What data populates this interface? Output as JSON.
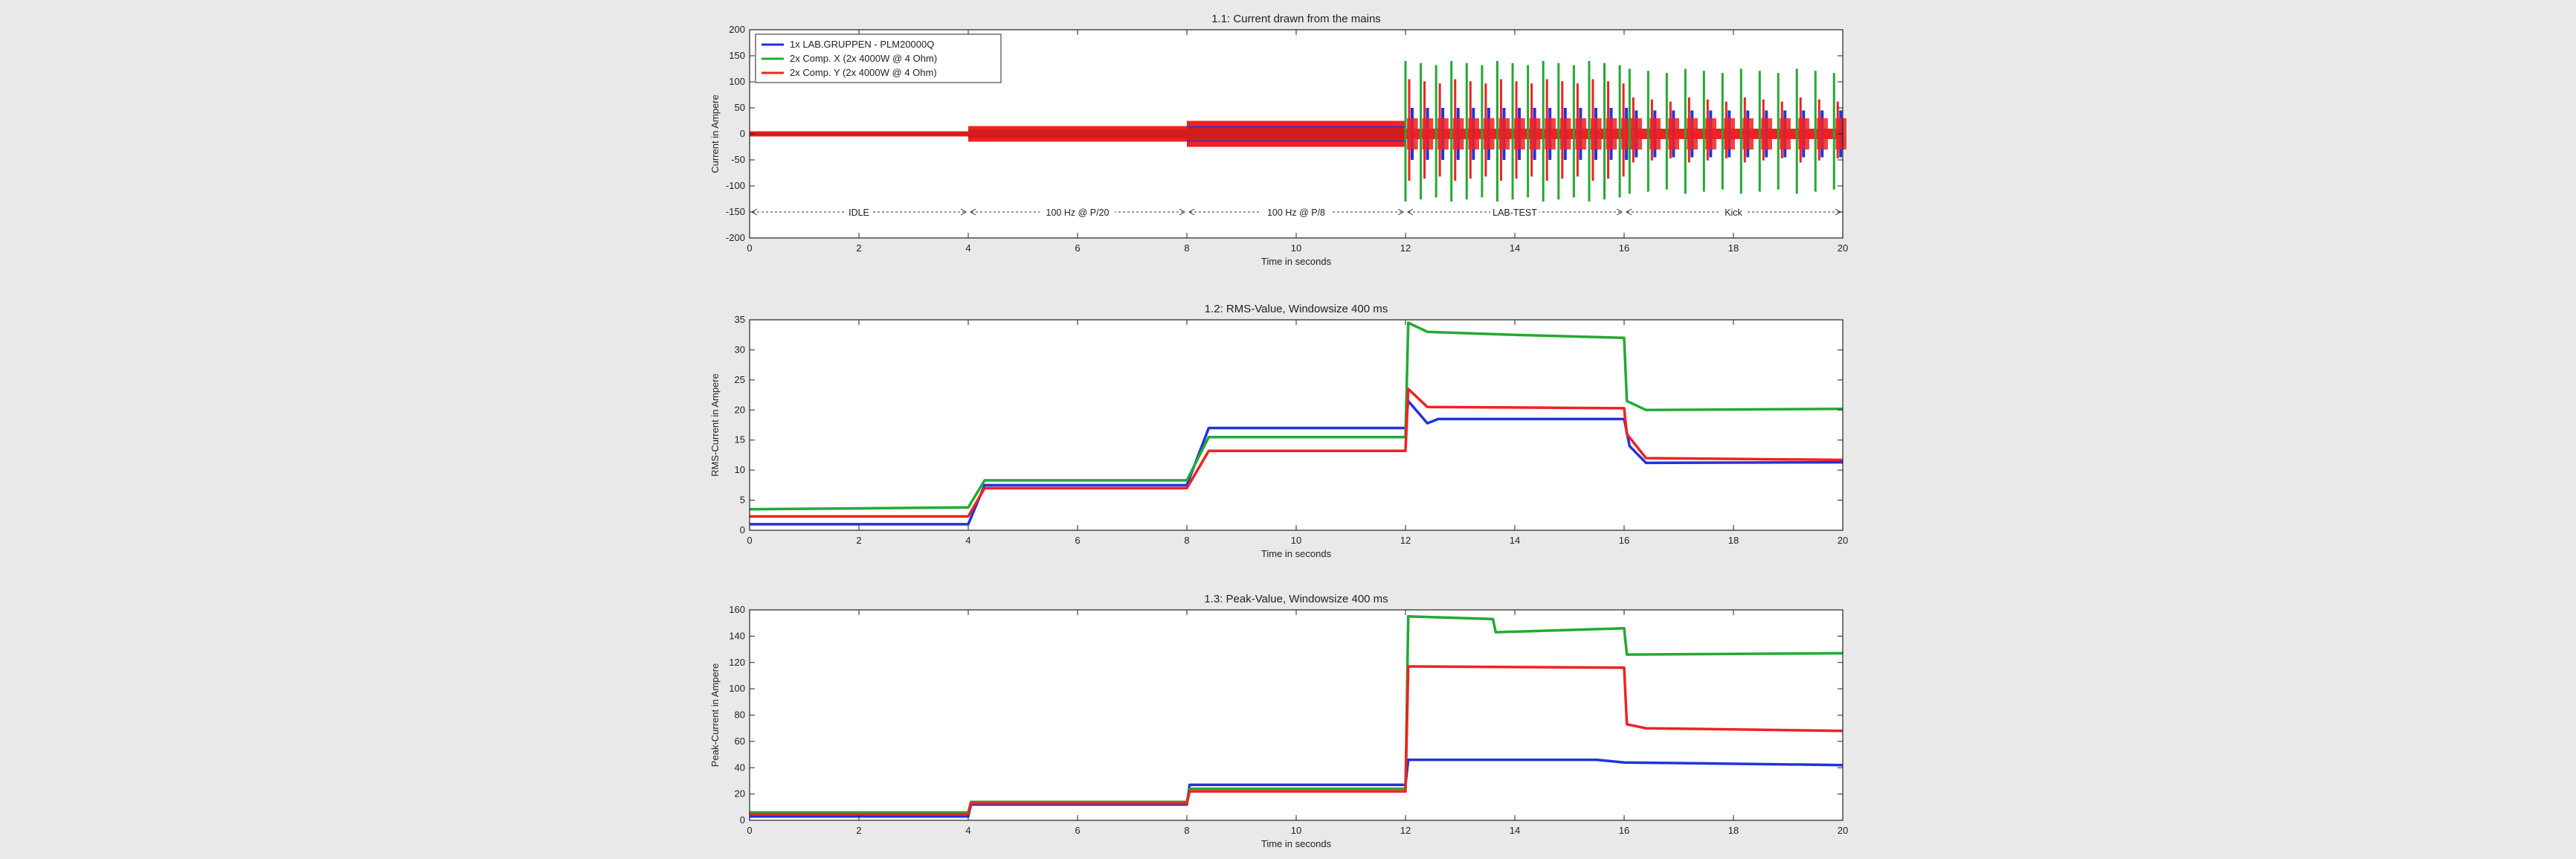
{
  "chart_data": [
    {
      "type": "line",
      "title": "1.1: Current drawn from the mains",
      "xlabel": "Time in seconds",
      "ylabel": "Current in Ampere",
      "xlim": [
        0,
        20
      ],
      "ylim": [
        -200,
        200
      ],
      "xticks": [
        0,
        2,
        4,
        6,
        8,
        10,
        12,
        14,
        16,
        18,
        20
      ],
      "yticks": [
        -200,
        -150,
        -100,
        -50,
        0,
        50,
        100,
        150,
        200
      ],
      "grid": false,
      "legend": "top-left",
      "series": [
        {
          "name": "1x LAB.GRUPPEN - PLM20000Q",
          "color": "#2233dd"
        },
        {
          "name": "2x Comp. X (2x 4000W @ 4 Ohm)",
          "color": "#22aa33"
        },
        {
          "name": "2x Comp. Y (2x 4000W @ 4 Ohm)",
          "color": "#ee2222"
        }
      ],
      "envelope": [
        {
          "t0": 0,
          "t1": 4,
          "amplitude": 5
        },
        {
          "t0": 4,
          "t1": 8,
          "amplitude": 15
        },
        {
          "t0": 8,
          "t1": 12,
          "amplitude": 25
        }
      ],
      "bursts": [
        {
          "t0": 12,
          "t1": 16,
          "times": [
            12,
            12.28,
            12.56,
            12.84,
            13.12,
            13.4,
            13.68,
            13.96,
            14.24,
            14.52,
            14.8,
            15.08,
            15.36,
            15.64,
            15.92
          ],
          "peak_green": 140,
          "peak_red": 105,
          "peak_blue": 50
        },
        {
          "t0": 16,
          "t1": 20,
          "times": [
            16.1,
            16.44,
            16.78,
            17.12,
            17.46,
            17.8,
            18.14,
            18.48,
            18.82,
            19.16,
            19.5,
            19.84
          ],
          "peak_green": 125,
          "peak_red": 70,
          "peak_blue": 45
        }
      ],
      "segments": [
        {
          "label": "IDLE",
          "x0": 0,
          "x1": 4
        },
        {
          "label": "100 Hz @ P/20",
          "x0": 4,
          "x1": 8
        },
        {
          "label": "100 Hz @ P/8",
          "x0": 8,
          "x1": 12
        },
        {
          "label": "LAB-TEST",
          "x0": 12,
          "x1": 16
        },
        {
          "label": "Kick",
          "x0": 16,
          "x1": 20
        }
      ]
    },
    {
      "type": "line",
      "title": "1.2: RMS-Value, Windowsize 400 ms",
      "xlabel": "Time in seconds",
      "ylabel": "RMS-Current in Ampere",
      "xlim": [
        0,
        20
      ],
      "ylim": [
        0,
        35
      ],
      "xticks": [
        0,
        2,
        4,
        6,
        8,
        10,
        12,
        14,
        16,
        18,
        20
      ],
      "yticks": [
        0,
        5,
        10,
        15,
        20,
        25,
        30,
        35
      ],
      "grid": false,
      "series": [
        {
          "name": "1x LAB.GRUPPEN - PLM20000Q",
          "color": "#2233dd",
          "points": [
            [
              0,
              1
            ],
            [
              4,
              1
            ],
            [
              4.3,
              7.5
            ],
            [
              8,
              7.5
            ],
            [
              8.4,
              17
            ],
            [
              12,
              17
            ],
            [
              12.05,
              21.5
            ],
            [
              12.4,
              17.8
            ],
            [
              12.6,
              18.5
            ],
            [
              16,
              18.5
            ],
            [
              16.1,
              14
            ],
            [
              16.4,
              11.2
            ],
            [
              20,
              11.3
            ]
          ]
        },
        {
          "name": "2x Comp. X (2x 4000W @ 4 Ohm)",
          "color": "#22aa33",
          "points": [
            [
              0,
              3.5
            ],
            [
              4,
              3.8
            ],
            [
              4.3,
              8.3
            ],
            [
              8,
              8.3
            ],
            [
              8.4,
              15.5
            ],
            [
              12,
              15.5
            ],
            [
              12.05,
              34.5
            ],
            [
              12.4,
              33
            ],
            [
              14,
              32.5
            ],
            [
              16,
              32
            ],
            [
              16.05,
              21.5
            ],
            [
              16.4,
              20
            ],
            [
              20,
              20.2
            ]
          ]
        },
        {
          "name": "2x Comp. Y (2x 4000W @ 4 Ohm)",
          "color": "#ee2222",
          "points": [
            [
              0,
              2.3
            ],
            [
              4,
              2.3
            ],
            [
              4.3,
              7
            ],
            [
              8,
              7
            ],
            [
              8.4,
              13.2
            ],
            [
              12,
              13.2
            ],
            [
              12.05,
              23.5
            ],
            [
              12.4,
              20.5
            ],
            [
              16,
              20.3
            ],
            [
              16.05,
              16
            ],
            [
              16.4,
              12
            ],
            [
              20,
              11.7
            ]
          ]
        }
      ]
    },
    {
      "type": "line",
      "title": "1.3: Peak-Value, Windowsize 400 ms",
      "xlabel": "Time in seconds",
      "ylabel": "Peak-Current in Ampere",
      "xlim": [
        0,
        20
      ],
      "ylim": [
        0,
        160
      ],
      "xticks": [
        0,
        2,
        4,
        6,
        8,
        10,
        12,
        14,
        16,
        18,
        20
      ],
      "yticks": [
        0,
        20,
        40,
        60,
        80,
        100,
        120,
        140,
        160
      ],
      "grid": false,
      "series": [
        {
          "name": "1x LAB.GRUPPEN - PLM20000Q",
          "color": "#2233dd",
          "points": [
            [
              0,
              3
            ],
            [
              4,
              3
            ],
            [
              4.05,
              12
            ],
            [
              8,
              12
            ],
            [
              8.05,
              27
            ],
            [
              12,
              27
            ],
            [
              12.05,
              46
            ],
            [
              15.5,
              46
            ],
            [
              16,
              44
            ],
            [
              20,
              42
            ]
          ]
        },
        {
          "name": "2x Comp. X (2x 4000W @ 4 Ohm)",
          "color": "#22aa33",
          "points": [
            [
              0,
              6
            ],
            [
              4,
              6
            ],
            [
              4.05,
              14
            ],
            [
              8,
              14
            ],
            [
              8.05,
              24
            ],
            [
              12,
              24
            ],
            [
              12.05,
              155
            ],
            [
              13.6,
              153
            ],
            [
              13.65,
              143
            ],
            [
              16,
              146
            ],
            [
              16.05,
              126
            ],
            [
              20,
              127
            ]
          ]
        },
        {
          "name": "2x Comp. Y (2x 4000W @ 4 Ohm)",
          "color": "#ee2222",
          "points": [
            [
              0,
              4.5
            ],
            [
              4,
              4.5
            ],
            [
              4.05,
              13
            ],
            [
              8,
              13
            ],
            [
              8.05,
              22
            ],
            [
              12,
              22
            ],
            [
              12.05,
              117
            ],
            [
              16,
              116
            ],
            [
              16.05,
              73
            ],
            [
              16.4,
              70
            ],
            [
              20,
              68
            ]
          ]
        }
      ]
    }
  ]
}
